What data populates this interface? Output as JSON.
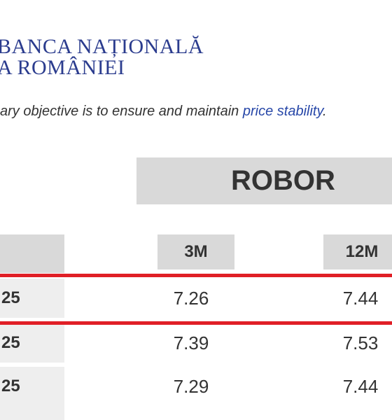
{
  "header": {
    "title_lines": [
      "BANCA NAȚIONALĂ",
      "A ROMÂNIEI"
    ]
  },
  "tagline": {
    "text": "ary objective is to ensure and maintain ",
    "link": "price stability",
    "end": "."
  },
  "table": {
    "title": "ROBOR",
    "columns": [
      "3M",
      "12M"
    ],
    "rows": [
      [
        "25",
        "7.26",
        "7.44"
      ],
      [
        "25",
        "7.39",
        "7.53"
      ],
      [
        "25",
        "7.29",
        "7.44"
      ]
    ]
  }
}
